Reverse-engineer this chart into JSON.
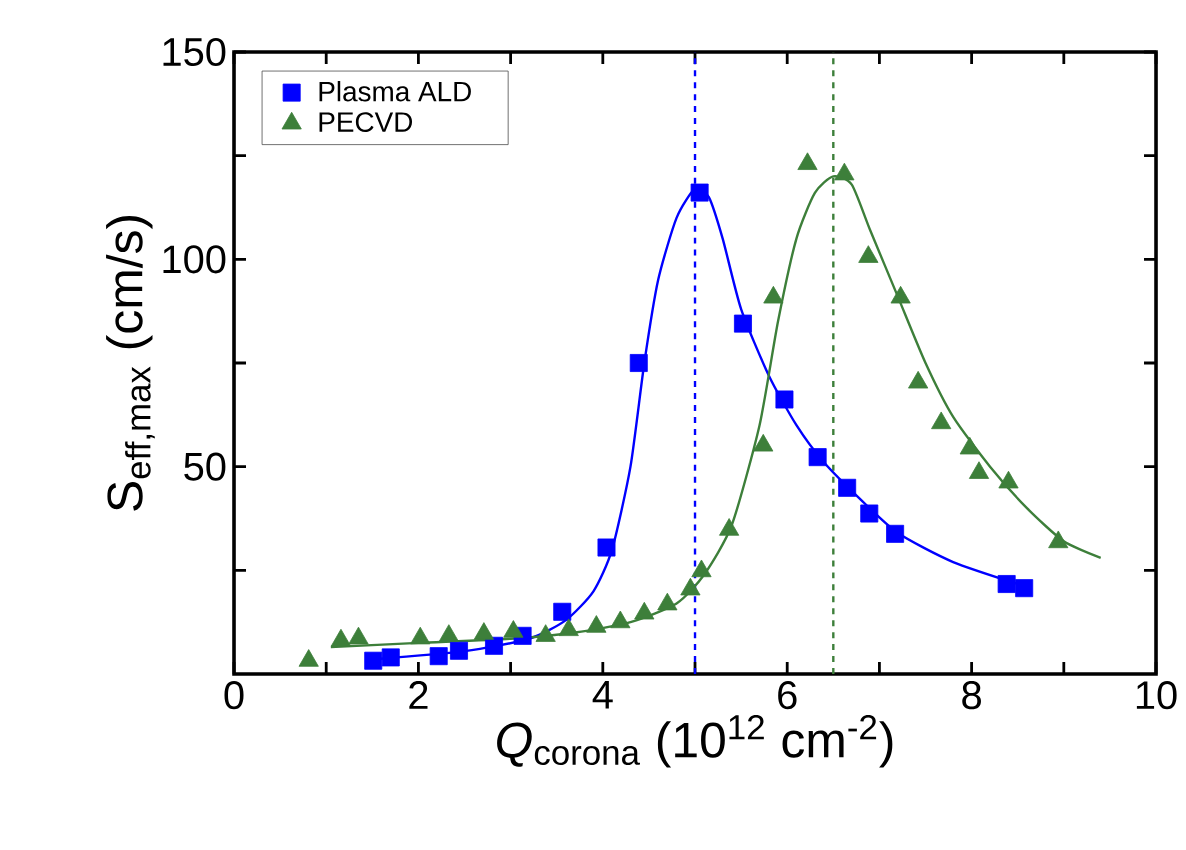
{
  "chart_data": {
    "type": "scatter",
    "xlabel": "*Q*$_{corona}$ (10$^{12}$ cm$^{-2}$)",
    "ylabel": "S$_{eff,max}$ (cm/s)",
    "xlim": [
      0,
      10
    ],
    "ylim": [
      0,
      150
    ],
    "xticks": [
      0,
      {
        "value": 1,
        "label": null
      },
      2,
      {
        "value": 3,
        "label": null
      },
      4,
      {
        "value": 5,
        "label": null
      },
      6,
      {
        "value": 7,
        "label": null
      },
      8,
      {
        "value": 9,
        "label": null
      },
      10
    ],
    "yticks": [
      {
        "value": 25,
        "label": null
      },
      50,
      {
        "value": 75,
        "label": null
      },
      100,
      {
        "value": 125,
        "label": null
      },
      150
    ],
    "legend": "top left",
    "grid": false,
    "ref_lines": [
      {
        "axis": "x",
        "value": 5.0,
        "color": "#0000ff",
        "line_style": "dashed"
      },
      {
        "axis": "x",
        "value": 6.5,
        "color": "#3d7f3a",
        "line_style": "dashed"
      }
    ],
    "series": [
      {
        "name": "Plasma ALD",
        "marker": "square",
        "color": "#0000ff",
        "x": [
          1.51,
          1.7,
          2.22,
          2.44,
          2.82,
          3.13,
          3.56,
          4.04,
          4.39,
          5.05,
          5.52,
          5.97,
          6.33,
          6.65,
          6.89,
          7.17,
          8.38,
          8.57
        ],
        "values": [
          3.2,
          4.0,
          4.3,
          5.6,
          6.8,
          9.2,
          15.0,
          30.5,
          75.0,
          116.1,
          84.5,
          66.2,
          52.3,
          44.9,
          38.7,
          33.8,
          21.7,
          20.7
        ]
      },
      {
        "name": "PECVD",
        "marker": "triangle",
        "color": "#3d7f3a",
        "x": [
          0.81,
          1.16,
          1.35,
          2.02,
          2.33,
          2.71,
          3.03,
          3.38,
          3.63,
          3.93,
          4.19,
          4.45,
          4.7,
          4.95,
          5.07,
          5.37,
          5.74,
          5.85,
          6.22,
          6.62,
          6.88,
          7.23,
          7.42,
          7.67,
          7.98,
          8.08,
          8.4,
          8.94
        ],
        "values": [
          3.2,
          8.1,
          8.6,
          8.6,
          9.2,
          9.7,
          10.2,
          9.2,
          10.6,
          11.4,
          12.5,
          14.6,
          16.8,
          20.4,
          24.8,
          34.8,
          55.1,
          90.8,
          123.0,
          120.5,
          100.6,
          90.8,
          70.3,
          60.5,
          54.4,
          48.5,
          46.2,
          31.8
        ]
      },
      {
        "type": "line",
        "marker": "none",
        "line_style": "solid",
        "color": "#0000ff",
        "x": [
          1.5,
          2.5,
          3.2,
          3.6,
          3.9,
          4.1,
          4.3,
          4.45,
          4.6,
          4.8,
          5.0,
          5.15,
          5.3,
          5.5,
          5.8,
          6.1,
          6.4,
          6.8,
          7.2,
          7.8,
          8.6
        ],
        "values": [
          3.5,
          5.5,
          8.5,
          13,
          20,
          30,
          50,
          75,
          95,
          110,
          117,
          115,
          105,
          88,
          72,
          60,
          51,
          42,
          34,
          27,
          21
        ]
      },
      {
        "type": "line",
        "marker": "none",
        "line_style": "solid",
        "color": "#3d7f3a",
        "x": [
          1.05,
          2,
          3,
          3.7,
          4.3,
          4.8,
          5.1,
          5.4,
          5.7,
          5.9,
          6.1,
          6.3,
          6.5,
          6.7,
          6.9,
          7.2,
          7.5,
          7.8,
          8.2,
          8.6,
          9.0,
          9.4
        ],
        "values": [
          6.5,
          7.5,
          8.5,
          10,
          12.5,
          17,
          24,
          36,
          60,
          85,
          105,
          116,
          120,
          118,
          107,
          91,
          75,
          62,
          50,
          40,
          32,
          28
        ]
      }
    ]
  }
}
